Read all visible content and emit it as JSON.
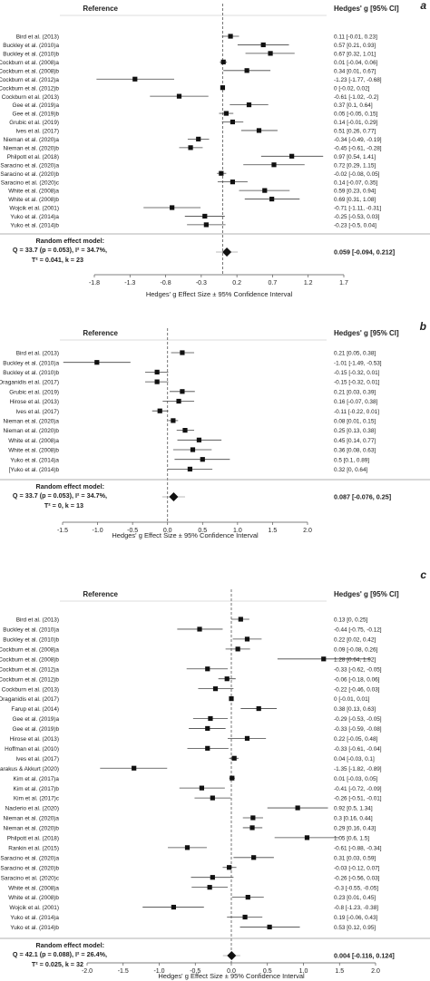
{
  "chart_data": [
    {
      "type": "forest",
      "panel_label": "a",
      "reference_header": "Reference",
      "ci_header": "Hedges' g [95% CI]",
      "xlabel": "Hedges' g Effect Size ± 95% Confidence Interval",
      "xlim": [
        -1.8,
        1.7
      ],
      "xticks": [
        "-1.8",
        "-1.3",
        "-0.8",
        "-0.3",
        "0.2",
        "0.7",
        "1.2",
        "1.7"
      ],
      "studies": [
        {
          "name": "Bird et al. (2013)",
          "g": 0.11,
          "lo": -0.01,
          "hi": 0.23,
          "ci": "0.11 [-0.01, 0.23]"
        },
        {
          "name": "Buckley et al. (2010)a",
          "g": 0.57,
          "lo": 0.21,
          "hi": 0.93,
          "ci": "0.57 [0.21, 0.93]"
        },
        {
          "name": "Buckley et al. (2010)b",
          "g": 0.67,
          "lo": 0.32,
          "hi": 1.01,
          "ci": "0.67 [0.32, 1.01]"
        },
        {
          "name": "Cockburn et al. (2008)a",
          "g": 0.01,
          "lo": -0.04,
          "hi": 0.06,
          "ci": "0.01 [-0.04, 0.06]"
        },
        {
          "name": "Cockburn et al. (2008)b",
          "g": 0.34,
          "lo": 0.01,
          "hi": 0.67,
          "ci": "0.34 [0.01, 0.67]"
        },
        {
          "name": "Cockburn et al. (2012)a",
          "g": -1.23,
          "lo": -1.77,
          "hi": -0.68,
          "ci": "-1.23 [-1.77, -0.68]"
        },
        {
          "name": "Cockburn et al. (2012)b",
          "g": 0,
          "lo": -0.02,
          "hi": 0.02,
          "ci": "0 [-0.02, 0.02]"
        },
        {
          "name": "Cockburn et al. (2013)",
          "g": -0.61,
          "lo": -1.02,
          "hi": -0.2,
          "ci": "-0.61 [-1.02, -0.2]"
        },
        {
          "name": "Gee et al. (2019)a",
          "g": 0.37,
          "lo": 0.1,
          "hi": 0.64,
          "ci": "0.37 [0.1, 0.64]"
        },
        {
          "name": "Gee et al. (2019)b",
          "g": 0.05,
          "lo": -0.05,
          "hi": 0.15,
          "ci": "0.05 [-0.05, 0.15]"
        },
        {
          "name": "Grubic et al. (2019)",
          "g": 0.14,
          "lo": -0.01,
          "hi": 0.29,
          "ci": "0.14 [-0.01, 0.29]"
        },
        {
          "name": "Ives et al. (2017)",
          "g": 0.51,
          "lo": 0.26,
          "hi": 0.77,
          "ci": "0.51 [0.26, 0.77]"
        },
        {
          "name": "Nieman et al. (2020)a",
          "g": -0.34,
          "lo": -0.49,
          "hi": -0.19,
          "ci": "-0.34 [-0.49, -0.19]"
        },
        {
          "name": "Nieman et al. (2020)b",
          "g": -0.45,
          "lo": -0.61,
          "hi": -0.28,
          "ci": "-0.45 [-0.61, -0.28]"
        },
        {
          "name": "Philpott et al. (2018)",
          "g": 0.97,
          "lo": 0.54,
          "hi": 1.41,
          "ci": "0.97 [0.54, 1.41]"
        },
        {
          "name": "Saracino et al. (2020)a",
          "g": 0.72,
          "lo": 0.29,
          "hi": 1.15,
          "ci": "0.72 [0.29, 1.15]"
        },
        {
          "name": "Saracino et al. (2020)b",
          "g": -0.02,
          "lo": -0.08,
          "hi": 0.05,
          "ci": "-0.02 [-0.08, 0.05]"
        },
        {
          "name": "Saracino et al. (2020)c",
          "g": 0.14,
          "lo": -0.07,
          "hi": 0.35,
          "ci": "0.14 [-0.07, 0.35]"
        },
        {
          "name": "White et al. (2008)a",
          "g": 0.59,
          "lo": 0.23,
          "hi": 0.94,
          "ci": "0.59 [0.23, 0.94]"
        },
        {
          "name": "White et al. (2008)b",
          "g": 0.69,
          "lo": 0.31,
          "hi": 1.08,
          "ci": "0.69 [0.31, 1.08]"
        },
        {
          "name": "Wojcik et al. (2001)",
          "g": -0.71,
          "lo": -1.11,
          "hi": -0.31,
          "ci": "-0.71 [-1.11, -0.31]"
        },
        {
          "name": "Yuko et al. (2014)a",
          "g": -0.25,
          "lo": -0.53,
          "hi": 0.03,
          "ci": "-0.25 [-0.53, 0.03]"
        },
        {
          "name": "Yuko et al. (2014)b",
          "g": -0.23,
          "lo": -0.5,
          "hi": 0.04,
          "ci": "-0.23 [-0.5, 0.04]"
        }
      ],
      "summary": {
        "title": "Random effect model:",
        "line1": "Q = 33.7 (p = 0.053), I² = 34.7%,",
        "line2": "T² = 0.041, k = 23",
        "g": 0.059,
        "lo": -0.094,
        "hi": 0.212,
        "ci": "0.059 [-0.094, 0.212]"
      }
    },
    {
      "type": "forest",
      "panel_label": "b",
      "reference_header": "Reference",
      "ci_header": "Hedges' g [95% CI]",
      "xlabel": "Hedges' g Effect Size ± 95% Confidence Interval",
      "xlim": [
        -1.5,
        2
      ],
      "xticks": [
        "-1.5",
        "-1.0",
        "-0.5",
        "0.0",
        "0.5",
        "1.0",
        "1.5",
        "2.0"
      ],
      "studies": [
        {
          "name": "Bird et al. (2013)",
          "g": 0.21,
          "lo": 0.05,
          "hi": 0.38,
          "ci": "0.21 [0.05, 0.38]"
        },
        {
          "name": "Buckley et al. (2010)a",
          "g": -1.01,
          "lo": -1.49,
          "hi": -0.53,
          "ci": "-1.01 [-1.49, -0.53]"
        },
        {
          "name": "Buckley et al. (2010)b",
          "g": -0.15,
          "lo": -0.32,
          "hi": 0.01,
          "ci": "-0.15 [-0.32, 0.01]"
        },
        {
          "name": "Draganidis et al. (2017)",
          "g": -0.15,
          "lo": -0.32,
          "hi": 0.01,
          "ci": "-0.15 [-0.32, 0.01]"
        },
        {
          "name": "Grubic et al. (2019)",
          "g": 0.21,
          "lo": 0.03,
          "hi": 0.39,
          "ci": "0.21 [0.03, 0.39]"
        },
        {
          "name": "Hirose et al. (2013)",
          "g": 0.16,
          "lo": -0.07,
          "hi": 0.38,
          "ci": "0.16 [-0.07, 0.38]"
        },
        {
          "name": "Ives et al. (2017)",
          "g": -0.11,
          "lo": -0.22,
          "hi": 0.01,
          "ci": "-0.11 [-0.22, 0.01]"
        },
        {
          "name": "Nieman et al. (2020)a",
          "g": 0.08,
          "lo": 0.01,
          "hi": 0.15,
          "ci": "0.08 [0.01, 0.15]"
        },
        {
          "name": "Nieman et al. (2020)b",
          "g": 0.25,
          "lo": 0.13,
          "hi": 0.38,
          "ci": "0.25 [0.13, 0.38]"
        },
        {
          "name": "White et al. (2008)a",
          "g": 0.45,
          "lo": 0.14,
          "hi": 0.77,
          "ci": "0.45 [0.14, 0.77]"
        },
        {
          "name": "White et al. (2008)b",
          "g": 0.36,
          "lo": 0.08,
          "hi": 0.63,
          "ci": "0.36 [0.08, 0.63]"
        },
        {
          "name": "Yuko et al. (2014)a",
          "g": 0.5,
          "lo": 0.1,
          "hi": 0.89,
          "ci": "0.5 [0.1, 0.89]"
        },
        {
          "name": "[Yuko et al. (2014)b",
          "g": 0.32,
          "lo": 0,
          "hi": 0.64,
          "ci": "0.32 [0, 0.64]"
        }
      ],
      "summary": {
        "title": "Random effect model:",
        "line1": "Q = 33.7 (p = 0.053), I² = 34.7%,",
        "line2": "T² = 0, k = 13",
        "g": 0.087,
        "lo": -0.076,
        "hi": 0.25,
        "ci": "0.087 [-0.076, 0.25]"
      }
    },
    {
      "type": "forest",
      "panel_label": "c",
      "reference_header": "Reference",
      "ci_header": "Hedges' g [95% CI]",
      "xlabel": "Hedges' g Effect Size ± 95% Confidence Interval",
      "xlim": [
        -2,
        2
      ],
      "xticks": [
        "-2.0",
        "-1.5",
        "-1.0",
        "-0.5",
        "0.0",
        "0.5",
        "1.0",
        "1.5",
        "2.0"
      ],
      "studies": [
        {
          "name": "Bird et al. (2013)",
          "g": 0.13,
          "lo": 0,
          "hi": 0.25,
          "ci": "0.13 [0, 0.25]"
        },
        {
          "name": "Buckley et al. (2010)a",
          "g": -0.44,
          "lo": -0.75,
          "hi": -0.12,
          "ci": "-0.44 [-0.75, -0.12]"
        },
        {
          "name": "Buckley et al. (2010)b",
          "g": 0.22,
          "lo": 0.02,
          "hi": 0.42,
          "ci": "0.22 [0.02, 0.42]"
        },
        {
          "name": "Cockburn et al. (2008)a",
          "g": 0.09,
          "lo": -0.08,
          "hi": 0.26,
          "ci": "0.09 [-0.08, 0.26]"
        },
        {
          "name": "Cockburn et al. (2008)b",
          "g": 1.28,
          "lo": 0.64,
          "hi": 1.92,
          "ci": "1.28 [0.64, 1.92]"
        },
        {
          "name": "Cockburn et al. (2012)a",
          "g": -0.33,
          "lo": -0.62,
          "hi": -0.05,
          "ci": "-0.33 [-0.62, -0.05]"
        },
        {
          "name": "Cockburn et al. (2012)b",
          "g": -0.06,
          "lo": -0.18,
          "hi": 0.06,
          "ci": "-0.06 [-0.18, 0.06]"
        },
        {
          "name": "Cockburn et al. (2013)",
          "g": -0.22,
          "lo": -0.46,
          "hi": 0.03,
          "ci": "-0.22 [-0.46, 0.03]"
        },
        {
          "name": "Draganidis et al. (2017)",
          "g": 0,
          "lo": -0.01,
          "hi": 0.01,
          "ci": "0 [-0.01, 0.01]"
        },
        {
          "name": "Farup et al. (2014)",
          "g": 0.38,
          "lo": 0.13,
          "hi": 0.63,
          "ci": "0.38 [0.13, 0.63]"
        },
        {
          "name": "Gee et al. (2019)a",
          "g": -0.29,
          "lo": -0.53,
          "hi": -0.05,
          "ci": "-0.29 [-0.53, -0.05]"
        },
        {
          "name": "Gee et al. (2019)b",
          "g": -0.33,
          "lo": -0.59,
          "hi": -0.08,
          "ci": "-0.33 [-0.59, -0.08]"
        },
        {
          "name": "Hirose et al. (2013)",
          "g": 0.22,
          "lo": -0.05,
          "hi": 0.48,
          "ci": "0.22 [-0.05, 0.48]"
        },
        {
          "name": "Hoffman et al. (2010)",
          "g": -0.33,
          "lo": -0.61,
          "hi": -0.04,
          "ci": "-0.33 [-0.61, -0.04]"
        },
        {
          "name": "Ives et al. (2017)",
          "g": 0.04,
          "lo": -0.03,
          "hi": 0.1,
          "ci": "0.04 [-0.03, 0.1]"
        },
        {
          "name": "Karakus & Akkurt (2020)",
          "g": -1.35,
          "lo": -1.82,
          "hi": -0.89,
          "ci": "-1.35 [-1.82, -0.89]"
        },
        {
          "name": "Kim et al. (2017)a",
          "g": 0.01,
          "lo": -0.03,
          "hi": 0.05,
          "ci": "0.01 [-0.03, 0.05]"
        },
        {
          "name": "Kim et al. (2017)b",
          "g": -0.41,
          "lo": -0.72,
          "hi": -0.09,
          "ci": "-0.41 [-0.72, -0.09]"
        },
        {
          "name": "Kim et al. (2017)c",
          "g": -0.26,
          "lo": -0.51,
          "hi": -0.01,
          "ci": "-0.26 [-0.51, -0.01]"
        },
        {
          "name": "Naclerio et al. (2020)",
          "g": 0.92,
          "lo": 0.5,
          "hi": 1.34,
          "ci": "0.92 [0.5, 1.34]"
        },
        {
          "name": "Nieman et al. (2020)a",
          "g": 0.3,
          "lo": 0.16,
          "hi": 0.44,
          "ci": "0.3 [0.16, 0.44]"
        },
        {
          "name": "Nieman et al. (2020)b",
          "g": 0.29,
          "lo": 0.16,
          "hi": 0.43,
          "ci": "0.29 [0.16, 0.43]"
        },
        {
          "name": "Philpott et al. (2018)",
          "g": 1.05,
          "lo": 0.6,
          "hi": 1.5,
          "ci": "1.05 [0.6, 1.5]"
        },
        {
          "name": "Rankin et al. (2015)",
          "g": -0.61,
          "lo": -0.88,
          "hi": -0.34,
          "ci": "-0.61 [-0.88, -0.34]"
        },
        {
          "name": "Saracino et al. (2020)a",
          "g": 0.31,
          "lo": 0.03,
          "hi": 0.59,
          "ci": "0.31 [0.03, 0.59]"
        },
        {
          "name": "Saracino et al. (2020)b",
          "g": -0.03,
          "lo": -0.12,
          "hi": 0.07,
          "ci": "-0.03 [-0.12, 0.07]"
        },
        {
          "name": "Saracino et al. (2020)c",
          "g": -0.26,
          "lo": -0.56,
          "hi": 0.03,
          "ci": "-0.26 [-0.56, 0.03]"
        },
        {
          "name": "White et al. (2008)a",
          "g": -0.3,
          "lo": -0.55,
          "hi": -0.05,
          "ci": "-0.3 [-0.55, -0.05]"
        },
        {
          "name": "White et al. (2008)b",
          "g": 0.23,
          "lo": 0.01,
          "hi": 0.45,
          "ci": "0.23 [0.01, 0.45]"
        },
        {
          "name": "Wojcik et al. (2001)",
          "g": -0.8,
          "lo": -1.23,
          "hi": -0.38,
          "ci": "-0.8 [-1.23, -0.38]"
        },
        {
          "name": "Yuko et al. (2014)a",
          "g": 0.19,
          "lo": -0.06,
          "hi": 0.43,
          "ci": "0.19 [-0.06, 0.43]"
        },
        {
          "name": "Yuko et al. (2014)b",
          "g": 0.53,
          "lo": 0.12,
          "hi": 0.95,
          "ci": "0.53 [0.12, 0.95]"
        }
      ],
      "summary": {
        "title": "Random effect model:",
        "line1": "Q = 42.1 (p = 0.088), I² = 26.4%,",
        "line2": "T² = 0.025, k = 32",
        "g": 0.004,
        "lo": -0.116,
        "hi": 0.124,
        "ci": "0.004 [-0.116, 0.124]"
      }
    }
  ]
}
